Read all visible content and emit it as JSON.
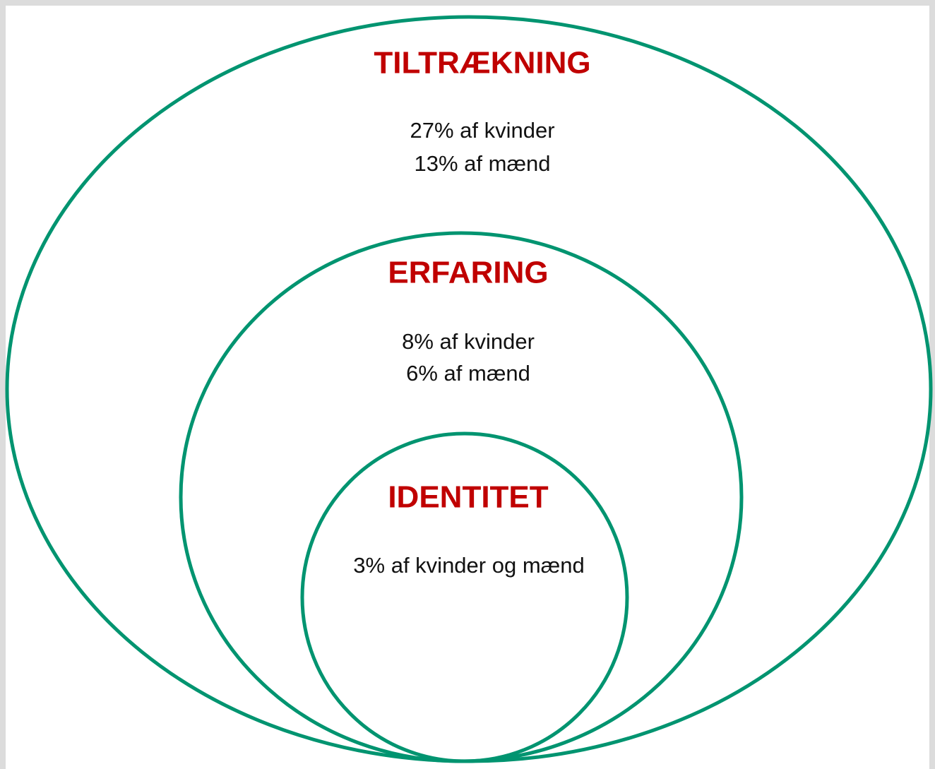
{
  "nodes": [
    {
      "label": "TILTRÆKNING",
      "lines": [
        "27% af kvinder",
        "13% af mænd"
      ]
    },
    {
      "label": "ERFARING",
      "lines": [
        "8% af kvinder",
        "6% af mænd"
      ]
    },
    {
      "label": "IDENTITET",
      "lines": [
        "3% af kvinder og mænd"
      ]
    }
  ]
}
